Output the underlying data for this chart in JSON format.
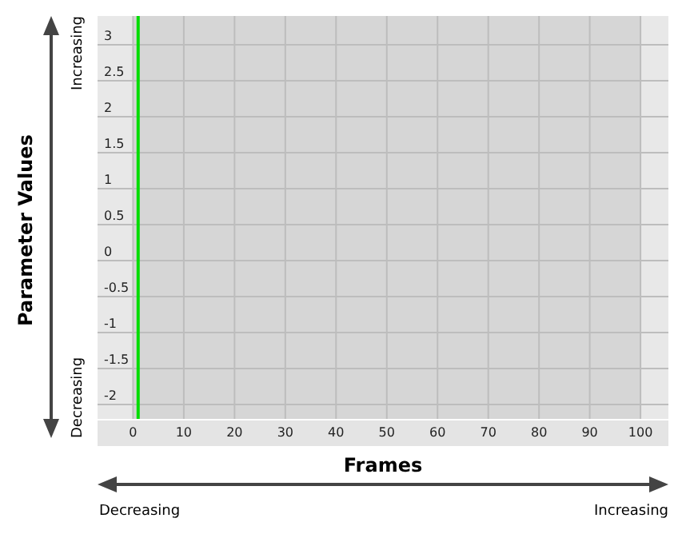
{
  "chart_data": {
    "type": "line",
    "xlabel": "Frames",
    "ylabel": "Parameter Values",
    "xlim": [
      -7,
      105.5
    ],
    "ylim": [
      -2.2,
      3.4
    ],
    "xticks": [
      0,
      10,
      20,
      30,
      40,
      50,
      60,
      70,
      80,
      90,
      100
    ],
    "yticks": [
      -2,
      -1.5,
      -1,
      -0.5,
      0,
      0.5,
      1,
      1.5,
      2,
      2.5,
      3
    ],
    "grid": true,
    "bands": [
      {
        "axis": "x",
        "from": 0,
        "to": 100,
        "color": "#d6d6d6"
      }
    ],
    "ref_lines": [
      {
        "axis": "x",
        "value": 1,
        "color": "#00dd00"
      }
    ],
    "annotations": [
      "Increasing",
      "Decreasing",
      "Decreasing",
      "Increasing"
    ]
  }
}
